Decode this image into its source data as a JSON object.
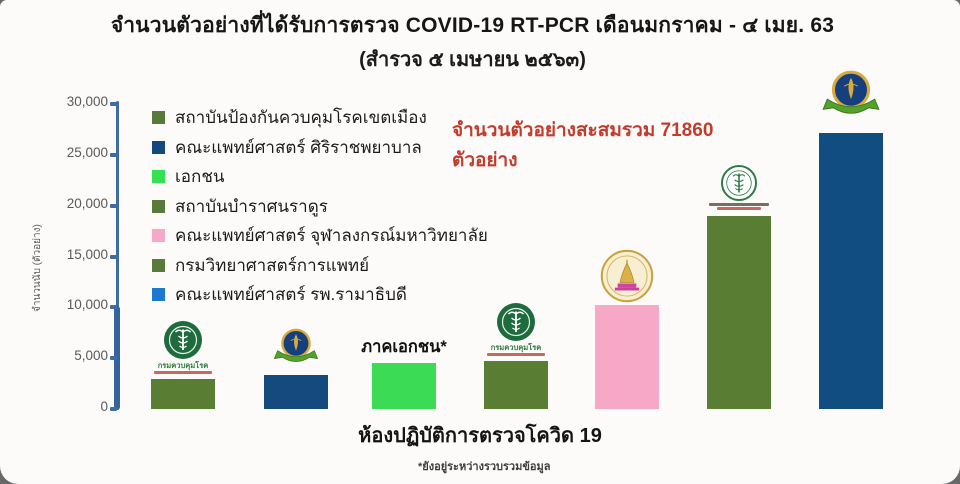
{
  "chart_data": {
    "type": "bar",
    "title": "จำนวนตัวอย่างที่ได้รับการตรวจ  COVID-19 RT-PCR เดือนมกราคม - ๔ เมย. 63",
    "subtitle": "(สำรวจ ๕ เมษายน ๒๕๖๓)",
    "total_annotation": "จำนวนตัวอย่างสะสมรวม 71860 ตัวอย่าง",
    "total_samples": 71860,
    "ylabel": "จำนวนนับ (ตัวอย่าง)",
    "xlabel": "ห้องปฏิบัติการตรวจโควิด 19",
    "footnote": "*ยังอยู่ระหว่างรวบรวมข้อมูล",
    "ylim": [
      0,
      30000
    ],
    "ytick_step": 5000,
    "ytick_labels": [
      "0",
      "5,000",
      "10,000",
      "15,000",
      "20,000",
      "25,000",
      "30,000"
    ],
    "grid": false,
    "legend_position": "upper-left",
    "legend": [
      {
        "label": "สถาบันป้องกันควบคุมโรคเขตเมือง",
        "color": "#5a7a3c"
      },
      {
        "label": "คณะแพทย์ศาสตร์ ศิริราชพยาบาล",
        "color": "#15497e"
      },
      {
        "label": "เอกชน",
        "color": "#35e052"
      },
      {
        "label": "สถาบันบำราศนราดูร",
        "color": "#5a7a3c"
      },
      {
        "label": "คณะแพทย์ศาสตร์ จุฬาลงกรณ์มหาวิทยาลัย",
        "color": "#f5a8c8"
      },
      {
        "label": "กรมวิทยาศาสตร์การแพทย์",
        "color": "#5a7a3c"
      },
      {
        "label": "คณะแพทย์ศาสตร์ รพ.รามาธิบดี",
        "color": "#1d78d1"
      }
    ],
    "bars": [
      {
        "name": "สถาบันป้องกันควบคุมโรคเขตเมือง",
        "value": 3000,
        "color": "#5a7d34",
        "logo": "ddc"
      },
      {
        "name": "คณะแพทย์ศาสตร์ รพ.รามาธิบดี",
        "value": 3300,
        "color": "#154a7e",
        "logo": "mahidol"
      },
      {
        "name": "เอกชน",
        "value": 4500,
        "color": "#3bdb55",
        "logo": "none",
        "label_above": "ภาคเอกชน*"
      },
      {
        "name": "สถาบันบำราศนราดูร",
        "value": 4700,
        "color": "#5a7d34",
        "logo": "ddc"
      },
      {
        "name": "คณะแพทย์ศาสตร์ จุฬาลงกรณ์มหาวิทยาลัย",
        "value": 10200,
        "color": "#f7a8c7",
        "logo": "chula"
      },
      {
        "name": "กรมวิทยาศาสตร์การแพทย์",
        "value": 19000,
        "color": "#5a7d34",
        "logo": "dmsc"
      },
      {
        "name": "คณะแพทย์ศาสตร์ ศิริราชพยาบาล",
        "value": 27160,
        "color": "#114d81",
        "logo": "mahidol"
      }
    ],
    "logo_captions": {
      "ddc": "กรมควบคุมโรค"
    }
  }
}
